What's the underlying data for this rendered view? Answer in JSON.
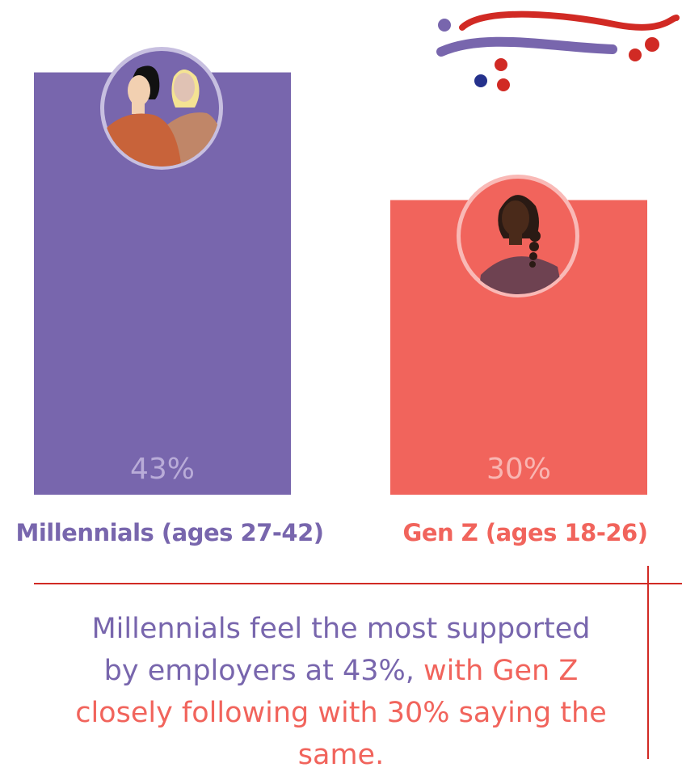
{
  "chart_data": {
    "type": "bar",
    "categories": [
      "Millennials (ages 27-42)",
      "Gen Z (ages 18-26)"
    ],
    "values": [
      43,
      30
    ],
    "value_labels": [
      "43%",
      "30%"
    ],
    "unit": "%",
    "colors": [
      "#7866ad",
      "#f1645c"
    ],
    "value_label_colors": [
      "#b9acd8",
      "#f9b6b2"
    ],
    "ring_colors": [
      "#c7bfe0",
      "#f9b9b6"
    ],
    "grid": false,
    "legend": "none"
  },
  "caption": {
    "part1": "Millennials feel the most supported by employers at 43%,",
    "part2": " with Gen Z closely following with 30% saying the same.",
    "color1": "#7866ad",
    "color2": "#f1645c"
  },
  "decor": {
    "accent_red": "#d12a24",
    "accent_purple": "#7866ad",
    "accent_navy": "#25318c"
  }
}
